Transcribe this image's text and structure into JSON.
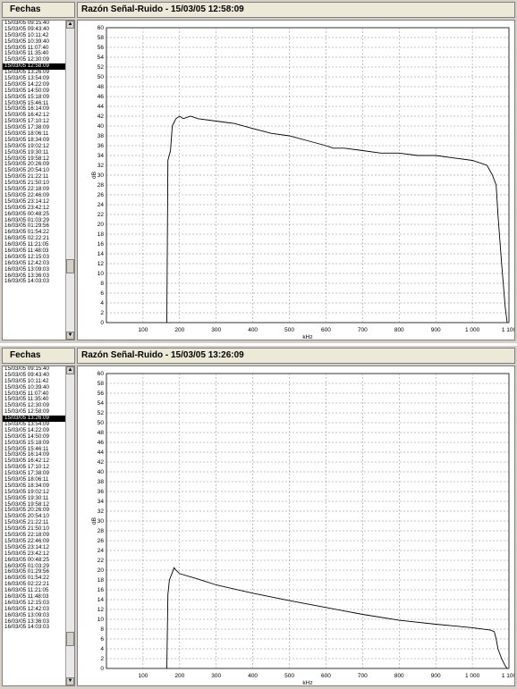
{
  "list_header": "Fechas",
  "items": [
    "15/03/05 09:15:40",
    "15/03/05 09:43:40",
    "15/03/05 10:11:42",
    "15/03/05 10:39:40",
    "15/03/05 11:07:40",
    "15/03/05 11:35:40",
    "15/03/05 12:30:09",
    "15/03/05 12:58:09",
    "15/03/05 13:26:09",
    "15/03/05 13:54:09",
    "15/03/05 14:22:09",
    "15/03/05 14:50:09",
    "15/03/05 15:18:09",
    "15/03/05 15:46:11",
    "15/03/05 16:14:09",
    "15/03/05 16:42:12",
    "15/03/05 17:10:12",
    "15/03/05 17:38:09",
    "15/03/05 18:06:11",
    "15/03/05 18:34:09",
    "15/03/05 19:02:12",
    "15/03/05 19:30:11",
    "15/03/05 19:58:12",
    "15/03/05 20:26:09",
    "15/03/05 20:54:10",
    "15/03/05 21:22:11",
    "15/03/05 21:50:10",
    "15/03/05 22:18:09",
    "15/03/05 22:46:09",
    "15/03/05 23:14:12",
    "15/03/05 23:42:12",
    "16/03/05 00:48:25",
    "16/03/05 01:03:29",
    "16/03/05 01:29:56",
    "16/03/05 01:54:22",
    "16/03/05 02:22:21",
    "16/03/05 11:21:05",
    "16/03/05 11:48:03",
    "16/03/05 12:15:03",
    "16/03/05 12:42:03",
    "16/03/05 13:09:03",
    "16/03/05 13:36:03",
    "16/03/05 14:03:03"
  ],
  "scroll_up": "▲",
  "scroll_down": "▼",
  "panels": [
    {
      "title": "Razón Señal-Ruido - 15/03/05 12:58:09",
      "selected_index": 7
    },
    {
      "title": "Razón Señal-Ruido - 15/03/05 13:26:09",
      "selected_index": 8
    }
  ],
  "chart_data": [
    {
      "type": "line",
      "ylabel": "dB",
      "xlabel": "kHz",
      "xlim": [
        0,
        1100
      ],
      "ylim": [
        0,
        60
      ],
      "x_ticks": [
        100,
        200,
        300,
        400,
        500,
        600,
        700,
        800,
        900,
        1000,
        1100
      ],
      "x_tick_labels": [
        "100",
        "200",
        "300",
        "400",
        "500",
        "600",
        "700",
        "800",
        "900",
        "1 000",
        "1 100"
      ],
      "y_ticks": [
        0,
        2,
        4,
        6,
        8,
        10,
        12,
        14,
        16,
        18,
        20,
        22,
        24,
        26,
        28,
        30,
        32,
        34,
        36,
        38,
        40,
        42,
        44,
        46,
        48,
        50,
        52,
        54,
        56,
        58,
        60
      ],
      "grid": true,
      "series": [
        {
          "x": [
            165,
            168,
            175,
            180,
            190,
            200,
            210,
            230,
            250,
            300,
            350,
            400,
            450,
            500,
            550,
            600,
            620,
            650,
            700,
            750,
            800,
            850,
            900,
            950,
            1000,
            1040,
            1055,
            1060,
            1065,
            1070,
            1080,
            1090,
            1095
          ],
          "y": [
            0,
            33,
            35,
            40,
            41.5,
            42,
            41.5,
            42,
            41.5,
            41,
            40.5,
            39.5,
            38.5,
            38,
            37,
            36,
            35.5,
            35.5,
            35,
            34.5,
            34.5,
            34,
            34,
            33.5,
            33,
            32,
            30,
            29,
            28,
            22,
            12,
            3,
            0
          ]
        }
      ]
    },
    {
      "type": "line",
      "ylabel": "dB",
      "xlabel": "kHz",
      "xlim": [
        0,
        1100
      ],
      "ylim": [
        0,
        60
      ],
      "x_ticks": [
        100,
        200,
        300,
        400,
        500,
        600,
        700,
        800,
        900,
        1000,
        1100
      ],
      "x_tick_labels": [
        "100",
        "200",
        "300",
        "400",
        "500",
        "600",
        "700",
        "800",
        "900",
        "1 000",
        "1 100"
      ],
      "y_ticks": [
        0,
        2,
        4,
        6,
        8,
        10,
        12,
        14,
        16,
        18,
        20,
        22,
        24,
        26,
        28,
        30,
        32,
        34,
        36,
        38,
        40,
        42,
        44,
        46,
        48,
        50,
        52,
        54,
        56,
        58,
        60
      ],
      "grid": true,
      "series": [
        {
          "x": [
            165,
            168,
            172,
            180,
            185,
            190,
            200,
            250,
            300,
            400,
            500,
            600,
            700,
            800,
            900,
            1000,
            1050,
            1060,
            1065,
            1070,
            1080,
            1090,
            1095
          ],
          "y": [
            0,
            15,
            18,
            19.5,
            20.5,
            20,
            19.3,
            18.2,
            17,
            15.3,
            13.8,
            12.4,
            11,
            9.8,
            9,
            8.3,
            7.8,
            7.5,
            6,
            4,
            2,
            0.5,
            0
          ]
        }
      ]
    }
  ]
}
